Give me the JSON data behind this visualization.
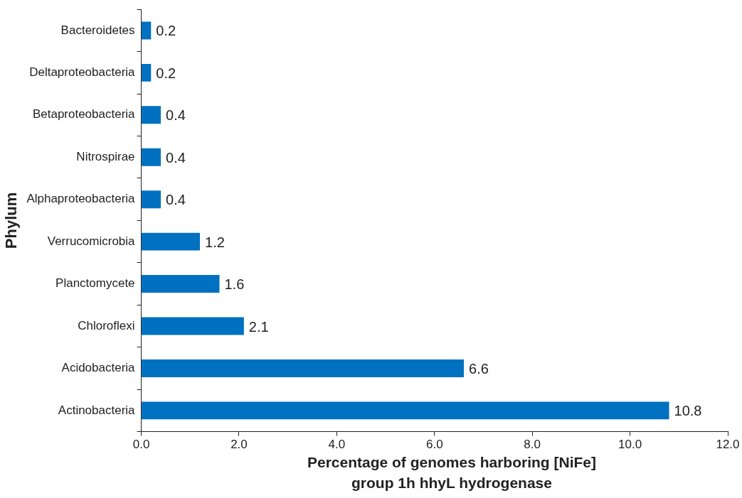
{
  "chart_data": {
    "type": "bar",
    "orientation": "horizontal",
    "categories": [
      "Bacteroidetes",
      "Deltaproteobacteria",
      "Betaproteobacteria",
      "Nitrospirae",
      "Alphaproteobacteria",
      "Verrucomicrobia",
      "Planctomycete",
      "Chloroflexi",
      "Acidobacteria",
      "Actinobacteria"
    ],
    "values": [
      0.2,
      0.2,
      0.4,
      0.4,
      0.4,
      1.2,
      1.6,
      2.1,
      6.6,
      10.8
    ],
    "color": "#0070c0",
    "xlim": [
      0,
      12
    ],
    "xticks": [
      {
        "value": 0,
        "label": "0.0"
      },
      {
        "value": 2,
        "label": "2.0"
      },
      {
        "value": 4,
        "label": "4.0"
      },
      {
        "value": 6,
        "label": "6.0"
      },
      {
        "value": 8,
        "label": "8.0"
      },
      {
        "value": 10,
        "label": "10.0"
      },
      {
        "value": 12,
        "label": "12.0"
      }
    ],
    "xlabel": "Percentage of genomes harboring [NiFe] group 1h hhyL hydrogenase",
    "ylabel": "Phylum",
    "data_labels": true,
    "grid": false,
    "legend": false
  }
}
